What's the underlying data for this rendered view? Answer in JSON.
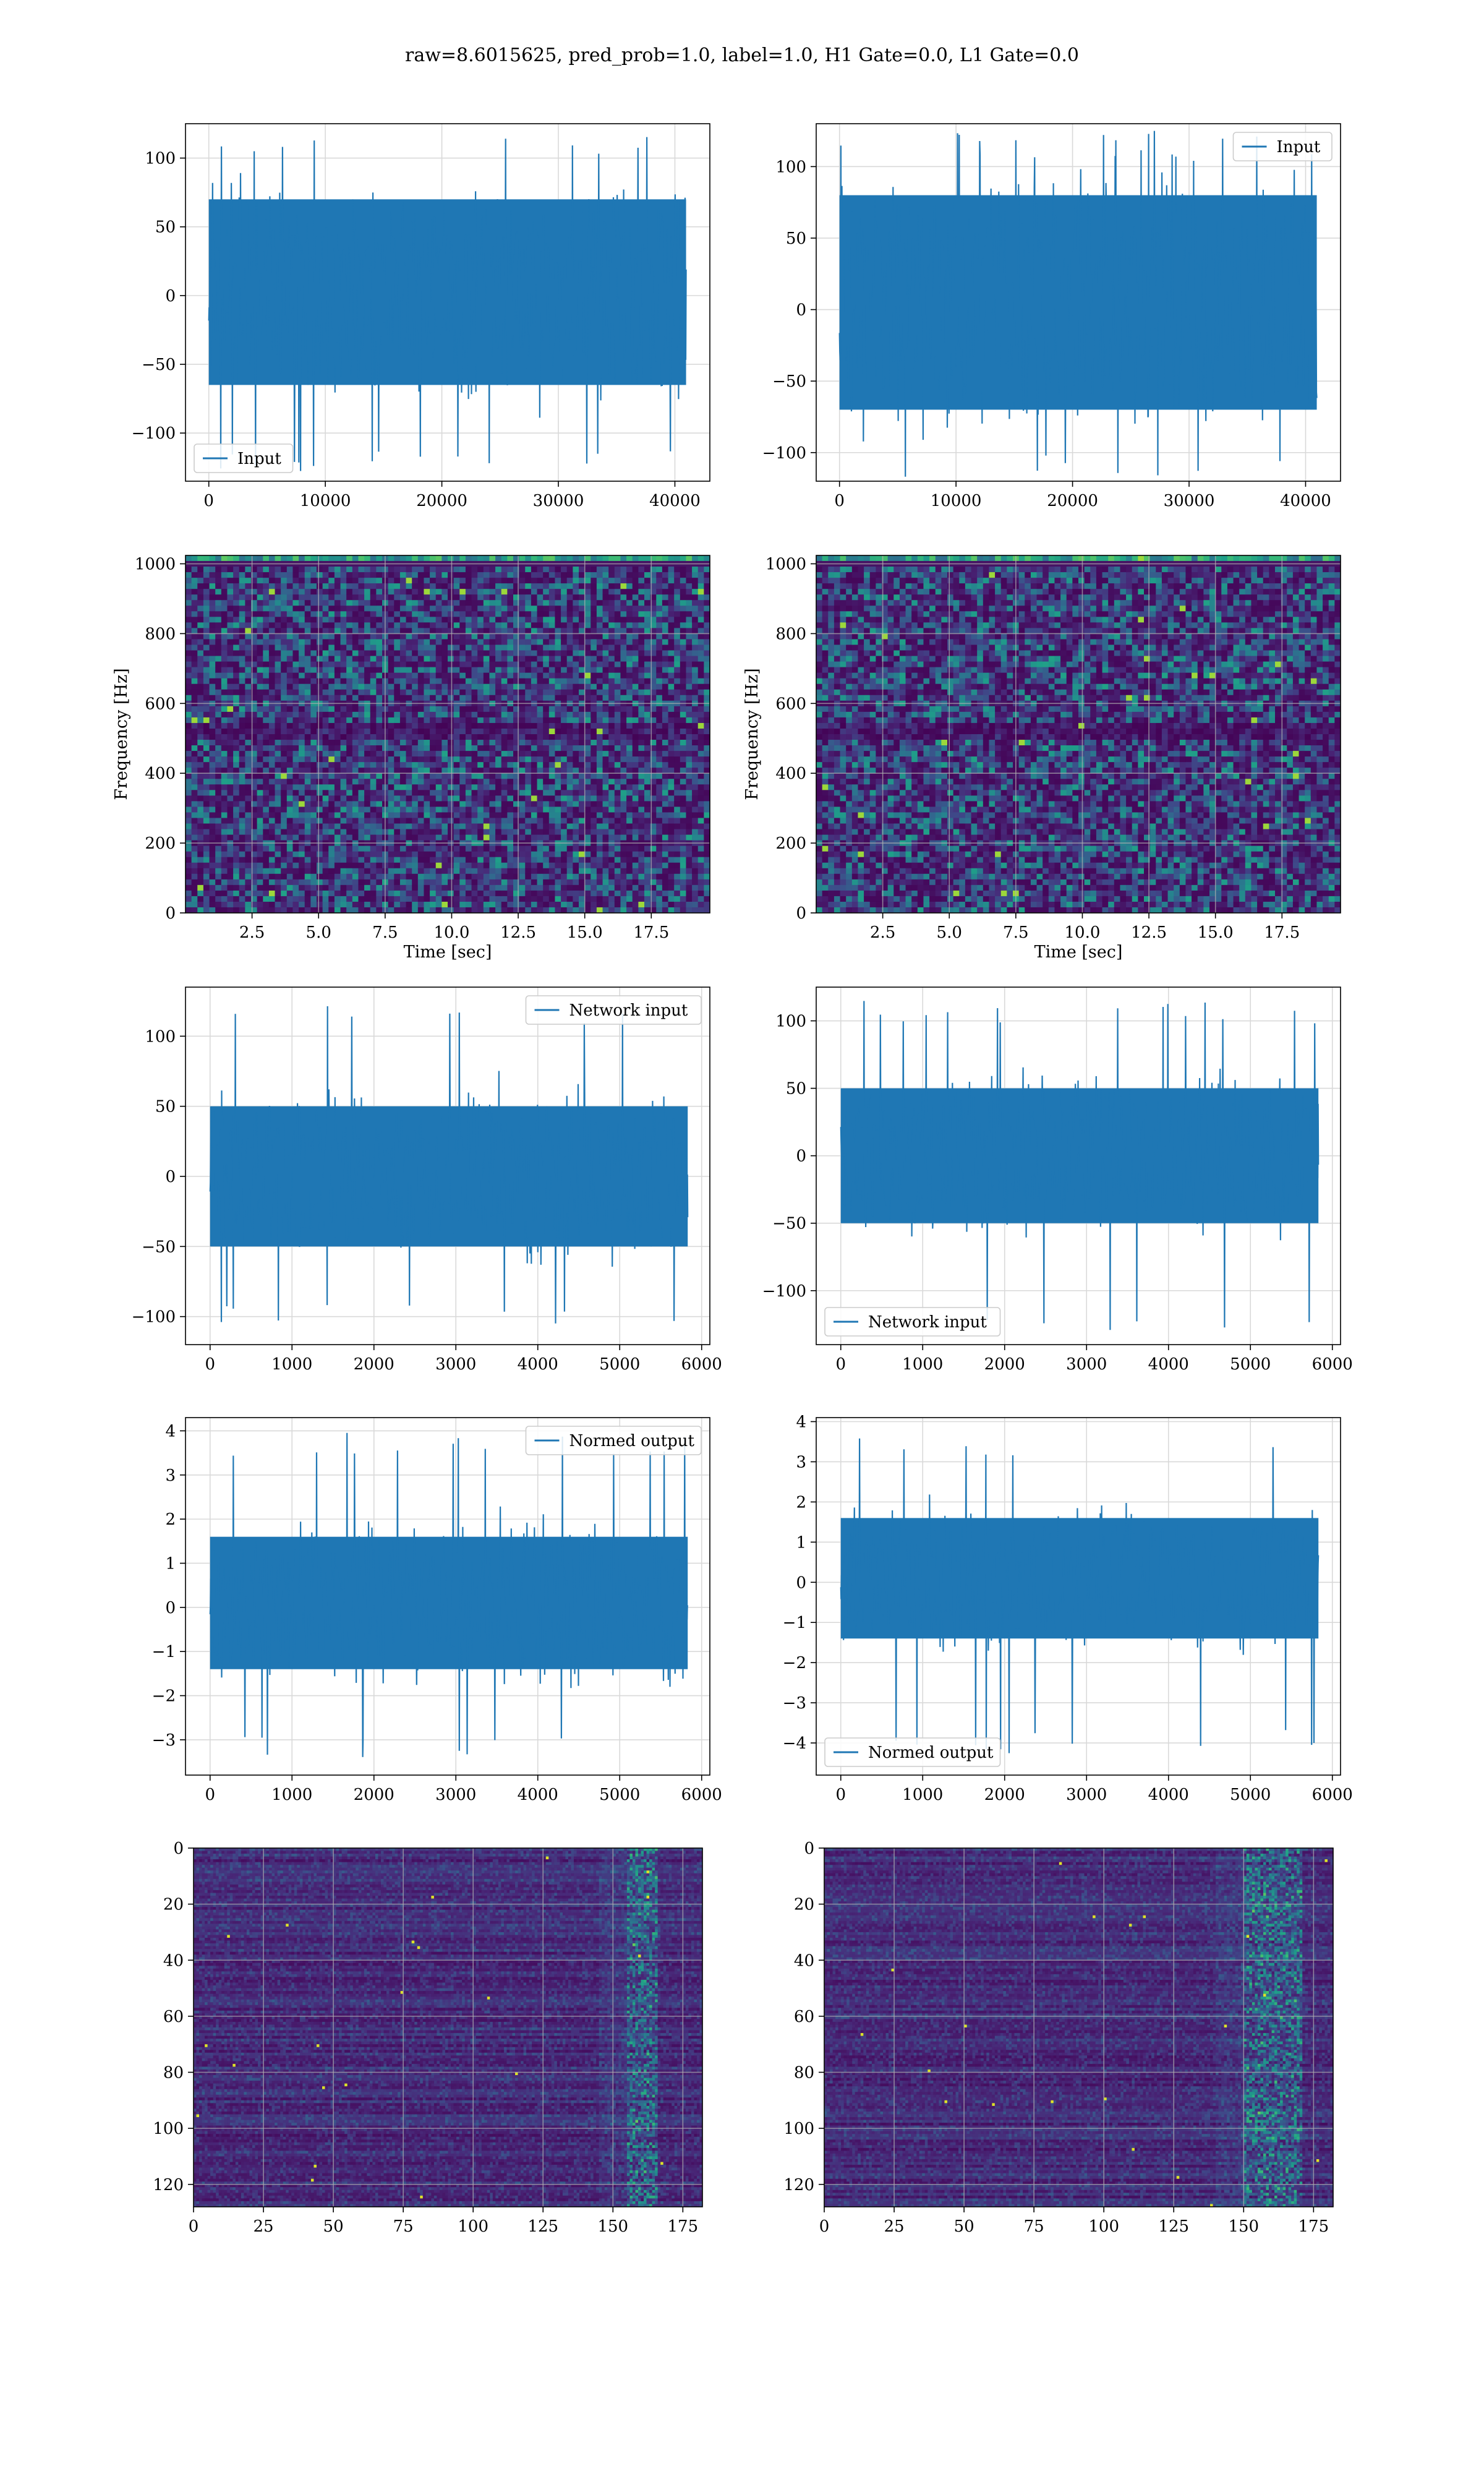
{
  "suptitle": "raw=8.6015625, pred_prob=1.0, label=1.0, H1 Gate=0.0, L1 Gate=0.0",
  "colors": {
    "line": "#1f77b4",
    "grid": "#d9d9d9",
    "viridis": [
      "#440154",
      "#482878",
      "#3e4a89",
      "#31688e",
      "#26828e",
      "#1f9e89",
      "#35b779",
      "#6ece58",
      "#b5de2b",
      "#fde725"
    ]
  },
  "chart_data": [
    {
      "id": "h1-raw-strain",
      "type": "line",
      "title": "",
      "xlabel": "",
      "ylabel": "",
      "xlim": [
        -2000,
        43000
      ],
      "ylim": [
        -135,
        125
      ],
      "xticks": [
        0,
        10000,
        20000,
        30000,
        40000
      ],
      "xtick_labels": [
        "0",
        "10000",
        "20000",
        "30000",
        "40000"
      ],
      "yticks": [
        -100,
        -50,
        0,
        50,
        100
      ],
      "ytick_labels": [
        "−100",
        "−50",
        "0",
        "50",
        "100"
      ],
      "grid": true,
      "legend": {
        "entries": [
          "Input"
        ],
        "placement": "lower-left"
      },
      "series": [
        {
          "name": "Input",
          "n_samples": 40960,
          "x_range": [
            0,
            40960
          ],
          "core_band": [
            -65,
            70
          ],
          "peak_range": [
            -130,
            117
          ]
        }
      ]
    },
    {
      "id": "l1-raw-strain",
      "type": "line",
      "title": "",
      "xlabel": "",
      "ylabel": "",
      "xlim": [
        -2000,
        43000
      ],
      "ylim": [
        -120,
        130
      ],
      "xticks": [
        0,
        10000,
        20000,
        30000,
        40000
      ],
      "xtick_labels": [
        "0",
        "10000",
        "20000",
        "30000",
        "40000"
      ],
      "yticks": [
        -100,
        -50,
        0,
        50,
        100
      ],
      "ytick_labels": [
        "−100",
        "−50",
        "0",
        "50",
        "100"
      ],
      "grid": true,
      "legend": {
        "entries": [
          "Input"
        ],
        "placement": "upper-right"
      },
      "series": [
        {
          "name": "Input",
          "n_samples": 40960,
          "x_range": [
            0,
            40960
          ],
          "core_band": [
            -70,
            80
          ],
          "peak_range": [
            -118,
            125
          ]
        }
      ]
    },
    {
      "id": "h1-spectrogram",
      "type": "heatmap",
      "title": "",
      "xlabel": "Time [sec]",
      "ylabel": "Frequency [Hz]",
      "xlim": [
        0,
        19.7
      ],
      "ylim": [
        0,
        1024
      ],
      "xticks": [
        2.5,
        5.0,
        7.5,
        10.0,
        12.5,
        15.0,
        17.5
      ],
      "xtick_labels": [
        "2.5",
        "5.0",
        "7.5",
        "10.0",
        "12.5",
        "15.0",
        "17.5"
      ],
      "yticks": [
        0,
        200,
        400,
        600,
        800,
        1000
      ],
      "ytick_labels": [
        "0",
        "200",
        "400",
        "600",
        "800",
        "1000"
      ],
      "grid": true,
      "colormap": "viridis",
      "bright_bands_hz": [
        1010
      ]
    },
    {
      "id": "l1-spectrogram",
      "type": "heatmap",
      "title": "",
      "xlabel": "Time [sec]",
      "ylabel": "Frequency [Hz]",
      "xlim": [
        0,
        19.7
      ],
      "ylim": [
        0,
        1024
      ],
      "xticks": [
        2.5,
        5.0,
        7.5,
        10.0,
        12.5,
        15.0,
        17.5
      ],
      "xtick_labels": [
        "2.5",
        "5.0",
        "7.5",
        "10.0",
        "12.5",
        "15.0",
        "17.5"
      ],
      "yticks": [
        0,
        200,
        400,
        600,
        800,
        1000
      ],
      "ytick_labels": [
        "0",
        "200",
        "400",
        "600",
        "800",
        "1000"
      ],
      "grid": true,
      "colormap": "viridis",
      "bright_bands_hz": [
        1010
      ]
    },
    {
      "id": "h1-network-input",
      "type": "line",
      "title": "",
      "xlabel": "",
      "ylabel": "",
      "xlim": [
        -300,
        6100
      ],
      "ylim": [
        -120,
        135
      ],
      "xticks": [
        0,
        1000,
        2000,
        3000,
        4000,
        5000,
        6000
      ],
      "xtick_labels": [
        "0",
        "1000",
        "2000",
        "3000",
        "4000",
        "5000",
        "6000"
      ],
      "yticks": [
        -100,
        -50,
        0,
        50,
        100
      ],
      "ytick_labels": [
        "−100",
        "−50",
        "0",
        "50",
        "100"
      ],
      "grid": true,
      "legend": {
        "entries": [
          "Network input"
        ],
        "placement": "upper-right"
      },
      "series": [
        {
          "name": "Network input",
          "n_samples": 5830,
          "x_range": [
            0,
            5830
          ],
          "core_band": [
            -50,
            50
          ],
          "peak_range": [
            -105,
            123
          ]
        }
      ]
    },
    {
      "id": "l1-network-input",
      "type": "line",
      "title": "",
      "xlabel": "",
      "ylabel": "",
      "xlim": [
        -300,
        6100
      ],
      "ylim": [
        -140,
        125
      ],
      "xticks": [
        0,
        1000,
        2000,
        3000,
        4000,
        5000,
        6000
      ],
      "xtick_labels": [
        "0",
        "1000",
        "2000",
        "3000",
        "4000",
        "5000",
        "6000"
      ],
      "yticks": [
        -100,
        -50,
        0,
        50,
        100
      ],
      "ytick_labels": [
        "−100",
        "−50",
        "0",
        "50",
        "100"
      ],
      "grid": true,
      "legend": {
        "entries": [
          "Network input"
        ],
        "placement": "lower-left"
      },
      "series": [
        {
          "name": "Network input",
          "n_samples": 5830,
          "x_range": [
            0,
            5830
          ],
          "core_band": [
            -50,
            50
          ],
          "peak_range": [
            -135,
            115
          ]
        }
      ]
    },
    {
      "id": "h1-normed-output",
      "type": "line",
      "title": "",
      "xlabel": "",
      "ylabel": "",
      "xlim": [
        -300,
        6100
      ],
      "ylim": [
        -3.8,
        4.3
      ],
      "xticks": [
        0,
        1000,
        2000,
        3000,
        4000,
        5000,
        6000
      ],
      "xtick_labels": [
        "0",
        "1000",
        "2000",
        "3000",
        "4000",
        "5000",
        "6000"
      ],
      "yticks": [
        -3,
        -2,
        -1,
        0,
        1,
        2,
        3,
        4
      ],
      "ytick_labels": [
        "−3",
        "−2",
        "−1",
        "0",
        "1",
        "2",
        "3",
        "4"
      ],
      "grid": true,
      "legend": {
        "entries": [
          "Normed output"
        ],
        "placement": "upper-right"
      },
      "series": [
        {
          "name": "Normed output",
          "n_samples": 5830,
          "x_range": [
            0,
            5830
          ],
          "core_band": [
            -1.4,
            1.6
          ],
          "peak_range": [
            -3.4,
            4.0
          ]
        }
      ]
    },
    {
      "id": "l1-normed-output",
      "type": "line",
      "title": "",
      "xlabel": "",
      "ylabel": "",
      "xlim": [
        -300,
        6100
      ],
      "ylim": [
        -4.8,
        4.1
      ],
      "xticks": [
        0,
        1000,
        2000,
        3000,
        4000,
        5000,
        6000
      ],
      "xtick_labels": [
        "0",
        "1000",
        "2000",
        "3000",
        "4000",
        "5000",
        "6000"
      ],
      "yticks": [
        -4,
        -3,
        -2,
        -1,
        0,
        1,
        2,
        3,
        4
      ],
      "ytick_labels": [
        "−4",
        "−3",
        "−2",
        "−1",
        "0",
        "1",
        "2",
        "3",
        "4"
      ],
      "grid": true,
      "legend": {
        "entries": [
          "Normed output"
        ],
        "placement": "lower-left"
      },
      "series": [
        {
          "name": "Normed output",
          "n_samples": 5830,
          "x_range": [
            0,
            5830
          ],
          "core_band": [
            -1.4,
            1.6
          ],
          "peak_range": [
            -4.3,
            3.7
          ]
        }
      ]
    },
    {
      "id": "h1-feature-map",
      "type": "heatmap",
      "title": "",
      "xlabel": "",
      "ylabel": "",
      "xlim": [
        0,
        182
      ],
      "ylim": [
        128,
        0
      ],
      "xticks": [
        0,
        25,
        50,
        75,
        100,
        125,
        150,
        175
      ],
      "xtick_labels": [
        "0",
        "25",
        "50",
        "75",
        "100",
        "125",
        "150",
        "175"
      ],
      "yticks": [
        0,
        20,
        40,
        60,
        80,
        100,
        120
      ],
      "ytick_labels": [
        "0",
        "20",
        "40",
        "60",
        "80",
        "100",
        "120"
      ],
      "grid": true,
      "colormap": "viridis",
      "active_columns": [
        155,
        165
      ]
    },
    {
      "id": "l1-feature-map",
      "type": "heatmap",
      "title": "",
      "xlabel": "",
      "ylabel": "",
      "xlim": [
        0,
        182
      ],
      "ylim": [
        128,
        0
      ],
      "xticks": [
        0,
        25,
        50,
        75,
        100,
        125,
        150,
        175
      ],
      "xtick_labels": [
        "0",
        "25",
        "50",
        "75",
        "100",
        "125",
        "150",
        "175"
      ],
      "yticks": [
        0,
        20,
        40,
        60,
        80,
        100,
        120
      ],
      "ytick_labels": [
        "0",
        "20",
        "40",
        "60",
        "80",
        "100",
        "120"
      ],
      "grid": true,
      "colormap": "viridis",
      "active_columns": [
        150,
        170
      ]
    }
  ]
}
